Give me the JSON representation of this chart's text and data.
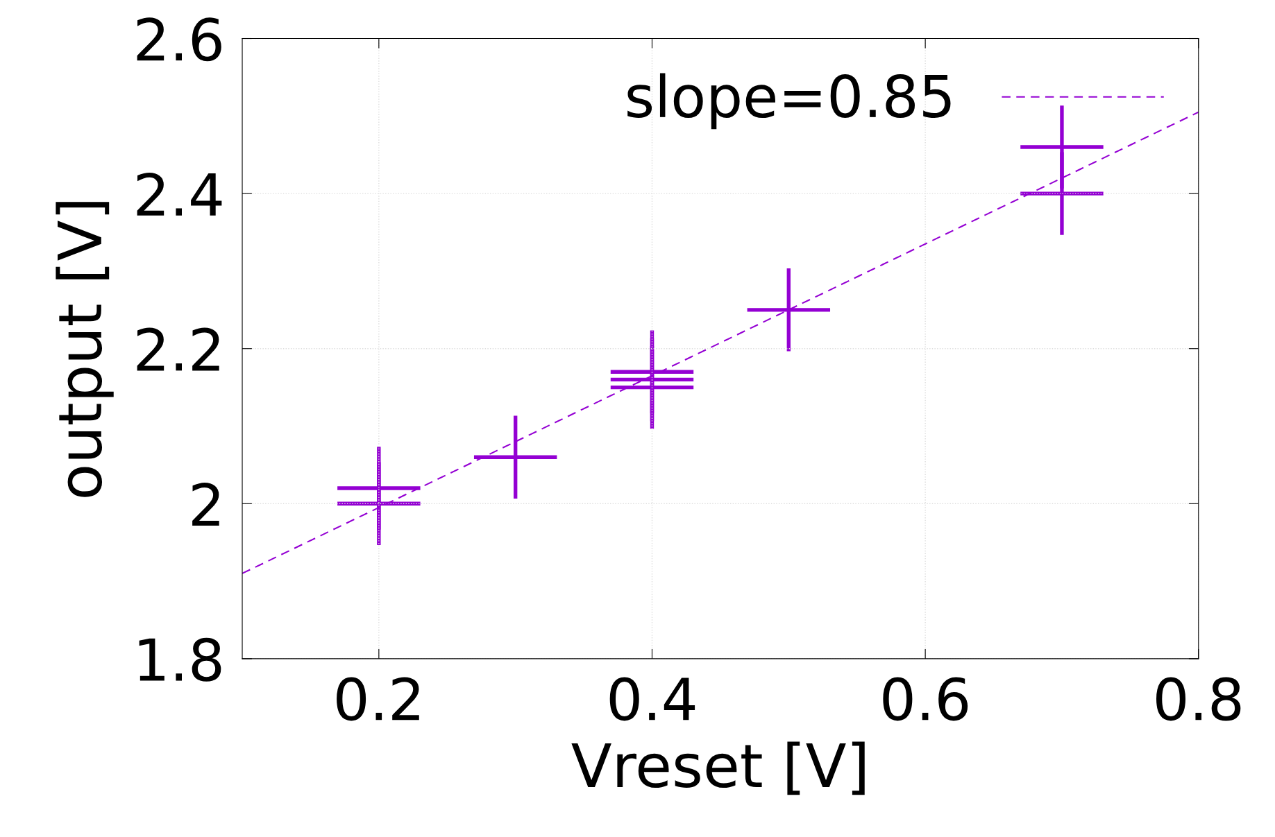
{
  "chart_data": {
    "type": "scatter",
    "xlabel": "Vreset [V]",
    "ylabel": "output [V]",
    "xlim": [
      0.1,
      0.8
    ],
    "xticks": [
      0.2,
      0.4,
      0.6,
      0.8
    ],
    "ylim": [
      1.8,
      2.6
    ],
    "yticks": [
      1.8,
      2.0,
      2.2,
      2.4,
      2.6
    ],
    "grid": true,
    "legend": "top right",
    "series": [
      {
        "type": "scatter",
        "marker": "cross",
        "color": "#9400d3",
        "x": [
          0.2,
          0.2,
          0.3,
          0.4,
          0.4,
          0.4,
          0.5,
          0.7,
          0.7
        ],
        "values": [
          2.02,
          2.0,
          2.06,
          2.17,
          2.16,
          2.15,
          2.25,
          2.46,
          2.4
        ]
      },
      {
        "type": "line",
        "name": "slope=0.85",
        "color": "#9400d3",
        "line_style": "dashed",
        "x": [
          0.1,
          0.8
        ],
        "values": [
          1.91,
          2.505
        ]
      }
    ]
  }
}
